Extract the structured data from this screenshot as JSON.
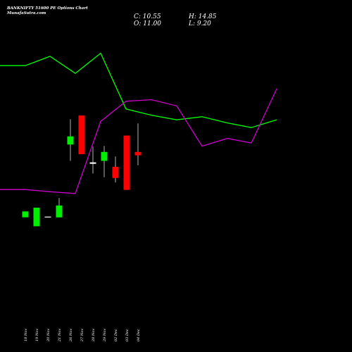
{
  "title": "BANKNIFTY 51600 PE Options Chart MunafaSutra.com",
  "ohlc": {
    "close_label": "C: 10.55",
    "open_label": "O: 11.00",
    "high_label": "H: 14.85",
    "low_label": "L: 9.20"
  },
  "colors": {
    "background": "#000000",
    "upper_line": "#00ff00",
    "lower_line": "#cc00cc",
    "bull_candle": "#00ee00",
    "bear_candle": "#ff0000",
    "neutral_candle": "#ffffff"
  },
  "chart_data": {
    "type": "candlestick",
    "categories": [
      "18 Nov",
      "19 Nov",
      "20 Nov",
      "21 Nov",
      "26 Nov",
      "27 Nov",
      "28 Nov",
      "29 Nov",
      "02 Dec",
      "03 Dec",
      "04 Dec"
    ],
    "candles": [
      {
        "date": "18 Nov",
        "open": 2.2,
        "high": 3.0,
        "low": 2.2,
        "close": 3.0,
        "color": "green"
      },
      {
        "date": "19 Nov",
        "open": 1.0,
        "high": 3.5,
        "low": 1.0,
        "close": 3.5,
        "color": "green"
      },
      {
        "date": "20 Nov",
        "open": 2.3,
        "high": 2.3,
        "low": 2.2,
        "close": 2.2,
        "color": "white"
      },
      {
        "date": "21 Nov",
        "open": 2.2,
        "high": 4.8,
        "low": 2.2,
        "close": 3.8,
        "color": "green"
      },
      {
        "date": "26 Nov",
        "open": 12.0,
        "high": 15.4,
        "low": 9.8,
        "close": 13.1,
        "color": "green"
      },
      {
        "date": "27 Nov",
        "open": 15.9,
        "high": 15.9,
        "low": 10.7,
        "close": 10.7,
        "color": "red"
      },
      {
        "date": "28 Nov",
        "open": 9.6,
        "high": 11.7,
        "low": 8.1,
        "close": 9.4,
        "color": "white"
      },
      {
        "date": "29 Nov",
        "open": 9.8,
        "high": 11.8,
        "low": 7.6,
        "close": 11.0,
        "color": "green"
      },
      {
        "date": "02 Dec",
        "open": 9.0,
        "high": 10.4,
        "low": 6.9,
        "close": 7.5,
        "color": "red"
      },
      {
        "date": "03 Dec",
        "open": 13.2,
        "high": 13.2,
        "low": 5.9,
        "close": 5.9,
        "color": "red"
      },
      {
        "date": "04 Dec",
        "open": 11.0,
        "high": 14.85,
        "low": 9.2,
        "close": 10.55,
        "color": "red"
      }
    ],
    "upper_line": [
      62,
      62,
      65,
      59.5,
      66,
      48,
      46,
      44.5,
      45.5,
      43.5,
      42,
      44.5
    ],
    "lower_line": [
      22,
      22,
      21.3,
      20.7,
      44,
      50.5,
      51,
      49,
      36,
      38.5,
      37,
      54.5
    ]
  }
}
